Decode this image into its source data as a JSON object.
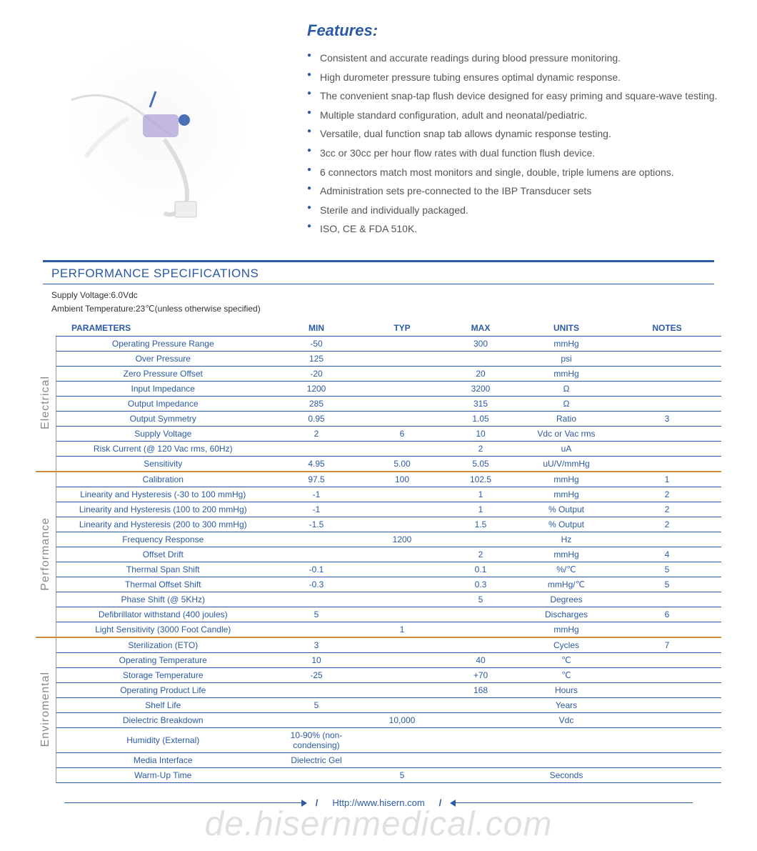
{
  "colors": {
    "primary": "#2b5aa5",
    "section_divider": "#c98a3a",
    "text": "#555555",
    "side_label": "#888888",
    "background": "#ffffff"
  },
  "features": {
    "title": "Features:",
    "items": [
      "Consistent and accurate readings during blood pressure monitoring.",
      "High durometer pressure tubing ensures optimal dynamic response.",
      "The convenient snap-tap flush device designed for easy priming and square-wave testing.",
      "Multiple standard configuration, adult and neonatal/pediatric.",
      "Versatile, dual function snap tab allows dynamic response testing.",
      "3cc or 30cc per hour flow rates with dual function flush device.",
      "6 connectors match most monitors and single, double, triple lumens are options.",
      "Administration sets pre-connected to the IBP Transducer sets",
      "Sterile and individually packaged.",
      "ISO, CE & FDA 510K."
    ]
  },
  "specs": {
    "title": "PERFORMANCE SPECIFICATIONS",
    "conditions": [
      "Supply Voltage:6.0Vdc",
      "Ambient Temperature:23℃(unless otherwise specified)"
    ],
    "columns": [
      "PARAMETERS",
      "MIN",
      "TYP",
      "MAX",
      "UNITS",
      "NOTES"
    ],
    "sections": [
      {
        "label": "Electrical",
        "rows": [
          {
            "param": "Operating Pressure Range",
            "min": "-50",
            "typ": "",
            "max": "300",
            "units": "mmHg",
            "notes": ""
          },
          {
            "param": "Over  Pressure",
            "min": "125",
            "typ": "",
            "max": "",
            "units": "psi",
            "notes": ""
          },
          {
            "param": "Zero Pressure Offset",
            "min": "-20",
            "typ": "",
            "max": "20",
            "units": "mmHg",
            "notes": ""
          },
          {
            "param": "Input Impedance",
            "min": "1200",
            "typ": "",
            "max": "3200",
            "units": "Ω",
            "notes": ""
          },
          {
            "param": "Output Impedance",
            "min": "285",
            "typ": "",
            "max": "315",
            "units": "Ω",
            "notes": ""
          },
          {
            "param": "Output Symmetry",
            "min": "0.95",
            "typ": "",
            "max": "1.05",
            "units": "Ratio",
            "notes": "3"
          },
          {
            "param": "Supply Voltage",
            "min": "2",
            "typ": "6",
            "max": "10",
            "units": "Vdc or Vac rms",
            "notes": ""
          },
          {
            "param": "Risk Current (@ 120 Vac rms, 60Hz)",
            "min": "",
            "typ": "",
            "max": "2",
            "units": "uA",
            "notes": ""
          },
          {
            "param": "Sensitivity",
            "min": "4.95",
            "typ": "5.00",
            "max": "5.05",
            "units": "uU/V/mmHg",
            "notes": ""
          }
        ]
      },
      {
        "label": "Performance",
        "rows": [
          {
            "param": "Calibration",
            "min": "97.5",
            "typ": "100",
            "max": "102.5",
            "units": "mmHg",
            "notes": "1"
          },
          {
            "param": "Linearity and Hysteresis (-30 to 100 mmHg)",
            "min": "-1",
            "typ": "",
            "max": "1",
            "units": "mmHg",
            "notes": "2"
          },
          {
            "param": "Linearity and Hysteresis (100 to 200 mmHg)",
            "min": "-1",
            "typ": "",
            "max": "1",
            "units": "% Output",
            "notes": "2"
          },
          {
            "param": "Linearity and Hysteresis (200 to 300 mmHg)",
            "min": "-1.5",
            "typ": "",
            "max": "1.5",
            "units": "% Output",
            "notes": "2"
          },
          {
            "param": "Frequency Response",
            "min": "",
            "typ": "1200",
            "max": "",
            "units": "Hz",
            "notes": ""
          },
          {
            "param": "Offset Drift",
            "min": "",
            "typ": "",
            "max": "2",
            "units": "mmHg",
            "notes": "4"
          },
          {
            "param": "Thermal Span Shift",
            "min": "-0.1",
            "typ": "",
            "max": "0.1",
            "units": "%/℃",
            "notes": "5"
          },
          {
            "param": "Thermal Offset Shift",
            "min": "-0.3",
            "typ": "",
            "max": "0.3",
            "units": "mmHg/℃",
            "notes": "5"
          },
          {
            "param": "Phase Shift (@ 5KHz)",
            "min": "",
            "typ": "",
            "max": "5",
            "units": "Degrees",
            "notes": ""
          },
          {
            "param": "Defibrillator withstand (400 joules)",
            "min": "5",
            "typ": "",
            "max": "",
            "units": "Discharges",
            "notes": "6"
          },
          {
            "param": "Light Sensitivity (3000 Foot Candle)",
            "min": "",
            "typ": "1",
            "max": "",
            "units": "mmHg",
            "notes": ""
          }
        ]
      },
      {
        "label": "Enviromental",
        "rows": [
          {
            "param": "Sterilization (ETO)",
            "min": "3",
            "typ": "",
            "max": "",
            "units": "Cycles",
            "notes": "7"
          },
          {
            "param": "Operating Temperature",
            "min": "10",
            "typ": "",
            "max": "40",
            "units": "℃",
            "notes": ""
          },
          {
            "param": "Storage Temperature",
            "min": "-25",
            "typ": "",
            "max": "+70",
            "units": "℃",
            "notes": ""
          },
          {
            "param": "Operating Product Life",
            "min": "",
            "typ": "",
            "max": "168",
            "units": "Hours",
            "notes": ""
          },
          {
            "param": "Shelf Life",
            "min": "5",
            "typ": "",
            "max": "",
            "units": "Years",
            "notes": ""
          },
          {
            "param": "Dielectric Breakdown",
            "min": "",
            "typ": "10,000",
            "max": "",
            "units": "Vdc",
            "notes": ""
          },
          {
            "param": "Humidity (External)",
            "min": "10-90% (non-condensing)",
            "typ": "",
            "max": "",
            "units": "",
            "notes": ""
          },
          {
            "param": "Media Interface",
            "min": "Dielectric Gel",
            "typ": "",
            "max": "",
            "units": "",
            "notes": ""
          },
          {
            "param": "Warm-Up Time",
            "min": "",
            "typ": "5",
            "max": "",
            "units": "Seconds",
            "notes": ""
          }
        ]
      }
    ]
  },
  "footer": {
    "url": "Http://www.hisern.com"
  },
  "watermark": "de.hisernmedical.com"
}
